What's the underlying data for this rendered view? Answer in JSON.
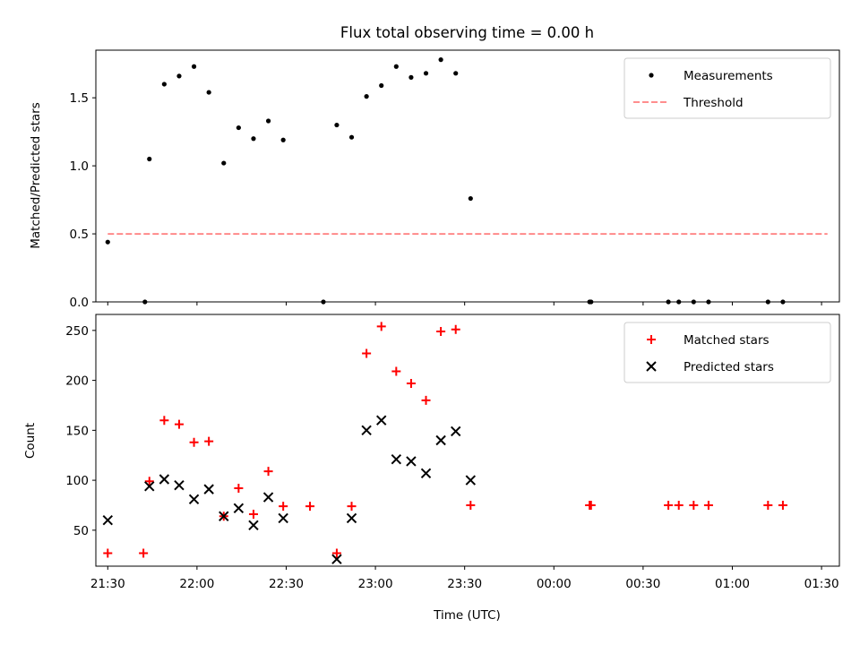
{
  "chart_data": [
    {
      "type": "scatter",
      "title": "Flux total observing time = 0.00 h",
      "xlabel": "",
      "ylabel": "Matched/Predicted stars",
      "xlim_min": [
        1282,
        1782
      ],
      "ylim": [
        0.0,
        1.85
      ],
      "yticks": [
        0.0,
        0.5,
        1.0,
        1.5
      ],
      "ytick_labels": [
        "0.0",
        "0.5",
        "1.0",
        "1.5"
      ],
      "legend_position": "upper right",
      "series": [
        {
          "name": "Measurements",
          "style": "dot",
          "color": "#000000",
          "points": [
            [
              1290,
              0.44
            ],
            [
              1315,
              0.0
            ],
            [
              1318,
              1.05
            ],
            [
              1328,
              1.6
            ],
            [
              1338,
              1.66
            ],
            [
              1348,
              1.73
            ],
            [
              1358,
              1.54
            ],
            [
              1368,
              1.02
            ],
            [
              1378,
              1.28
            ],
            [
              1388,
              1.2
            ],
            [
              1398,
              1.33
            ],
            [
              1408,
              1.19
            ],
            [
              1435,
              0.0
            ],
            [
              1444,
              1.3
            ],
            [
              1454,
              1.21
            ],
            [
              1464,
              1.51
            ],
            [
              1474,
              1.59
            ],
            [
              1484,
              1.73
            ],
            [
              1494,
              1.65
            ],
            [
              1504,
              1.68
            ],
            [
              1514,
              1.78
            ],
            [
              1524,
              1.68
            ],
            [
              1534,
              0.76
            ],
            [
              1614,
              0.0
            ],
            [
              1615,
              0.0
            ],
            [
              1667,
              0.0
            ],
            [
              1674,
              0.0
            ],
            [
              1684,
              0.0
            ],
            [
              1694,
              0.0
            ],
            [
              1734,
              0.0
            ],
            [
              1744,
              0.0
            ]
          ]
        },
        {
          "name": "Threshold",
          "style": "dashed-line",
          "color": "#ff7f7f",
          "points": [
            [
              1290,
              0.5
            ],
            [
              1774,
              0.5
            ]
          ]
        }
      ]
    },
    {
      "type": "scatter",
      "title": "",
      "xlabel": "Time (UTC)",
      "ylabel": "Count",
      "xlim_min": [
        1282,
        1782
      ],
      "ylim": [
        14,
        266
      ],
      "yticks": [
        50,
        100,
        150,
        200,
        250
      ],
      "ytick_labels": [
        "50",
        "100",
        "150",
        "200",
        "250"
      ],
      "xticks_min": [
        1290,
        1350,
        1410,
        1470,
        1530,
        1590,
        1650,
        1710,
        1770
      ],
      "xtick_labels": [
        "21:30",
        "22:00",
        "22:30",
        "23:00",
        "23:30",
        "00:00",
        "00:30",
        "01:00",
        "01:30"
      ],
      "legend_position": "upper right",
      "series": [
        {
          "name": "Matched stars",
          "marker": "plus",
          "color": "#ff0000",
          "points": [
            [
              1290,
              27
            ],
            [
              1314,
              27
            ],
            [
              1318,
              99
            ],
            [
              1328,
              160
            ],
            [
              1338,
              156
            ],
            [
              1348,
              138
            ],
            [
              1358,
              139
            ],
            [
              1368,
              64
            ],
            [
              1378,
              92
            ],
            [
              1388,
              66
            ],
            [
              1398,
              109
            ],
            [
              1408,
              74
            ],
            [
              1426,
              74
            ],
            [
              1444,
              27
            ],
            [
              1454,
              74
            ],
            [
              1464,
              227
            ],
            [
              1474,
              254
            ],
            [
              1484,
              209
            ],
            [
              1494,
              197
            ],
            [
              1504,
              180
            ],
            [
              1514,
              249
            ],
            [
              1524,
              251
            ],
            [
              1534,
              75
            ],
            [
              1614,
              75
            ],
            [
              1615,
              75
            ],
            [
              1667,
              75
            ],
            [
              1674,
              75
            ],
            [
              1684,
              75
            ],
            [
              1694,
              75
            ],
            [
              1734,
              75
            ],
            [
              1744,
              75
            ]
          ]
        },
        {
          "name": "Predicted stars",
          "marker": "x",
          "color": "#000000",
          "points": [
            [
              1290,
              60
            ],
            [
              1318,
              94
            ],
            [
              1328,
              101
            ],
            [
              1338,
              95
            ],
            [
              1348,
              81
            ],
            [
              1358,
              91
            ],
            [
              1368,
              64
            ],
            [
              1378,
              72
            ],
            [
              1388,
              55
            ],
            [
              1398,
              83
            ],
            [
              1408,
              62
            ],
            [
              1444,
              21
            ],
            [
              1454,
              62
            ],
            [
              1464,
              150
            ],
            [
              1474,
              160
            ],
            [
              1484,
              121
            ],
            [
              1494,
              119
            ],
            [
              1504,
              107
            ],
            [
              1514,
              140
            ],
            [
              1524,
              149
            ],
            [
              1534,
              100
            ]
          ]
        }
      ]
    }
  ]
}
